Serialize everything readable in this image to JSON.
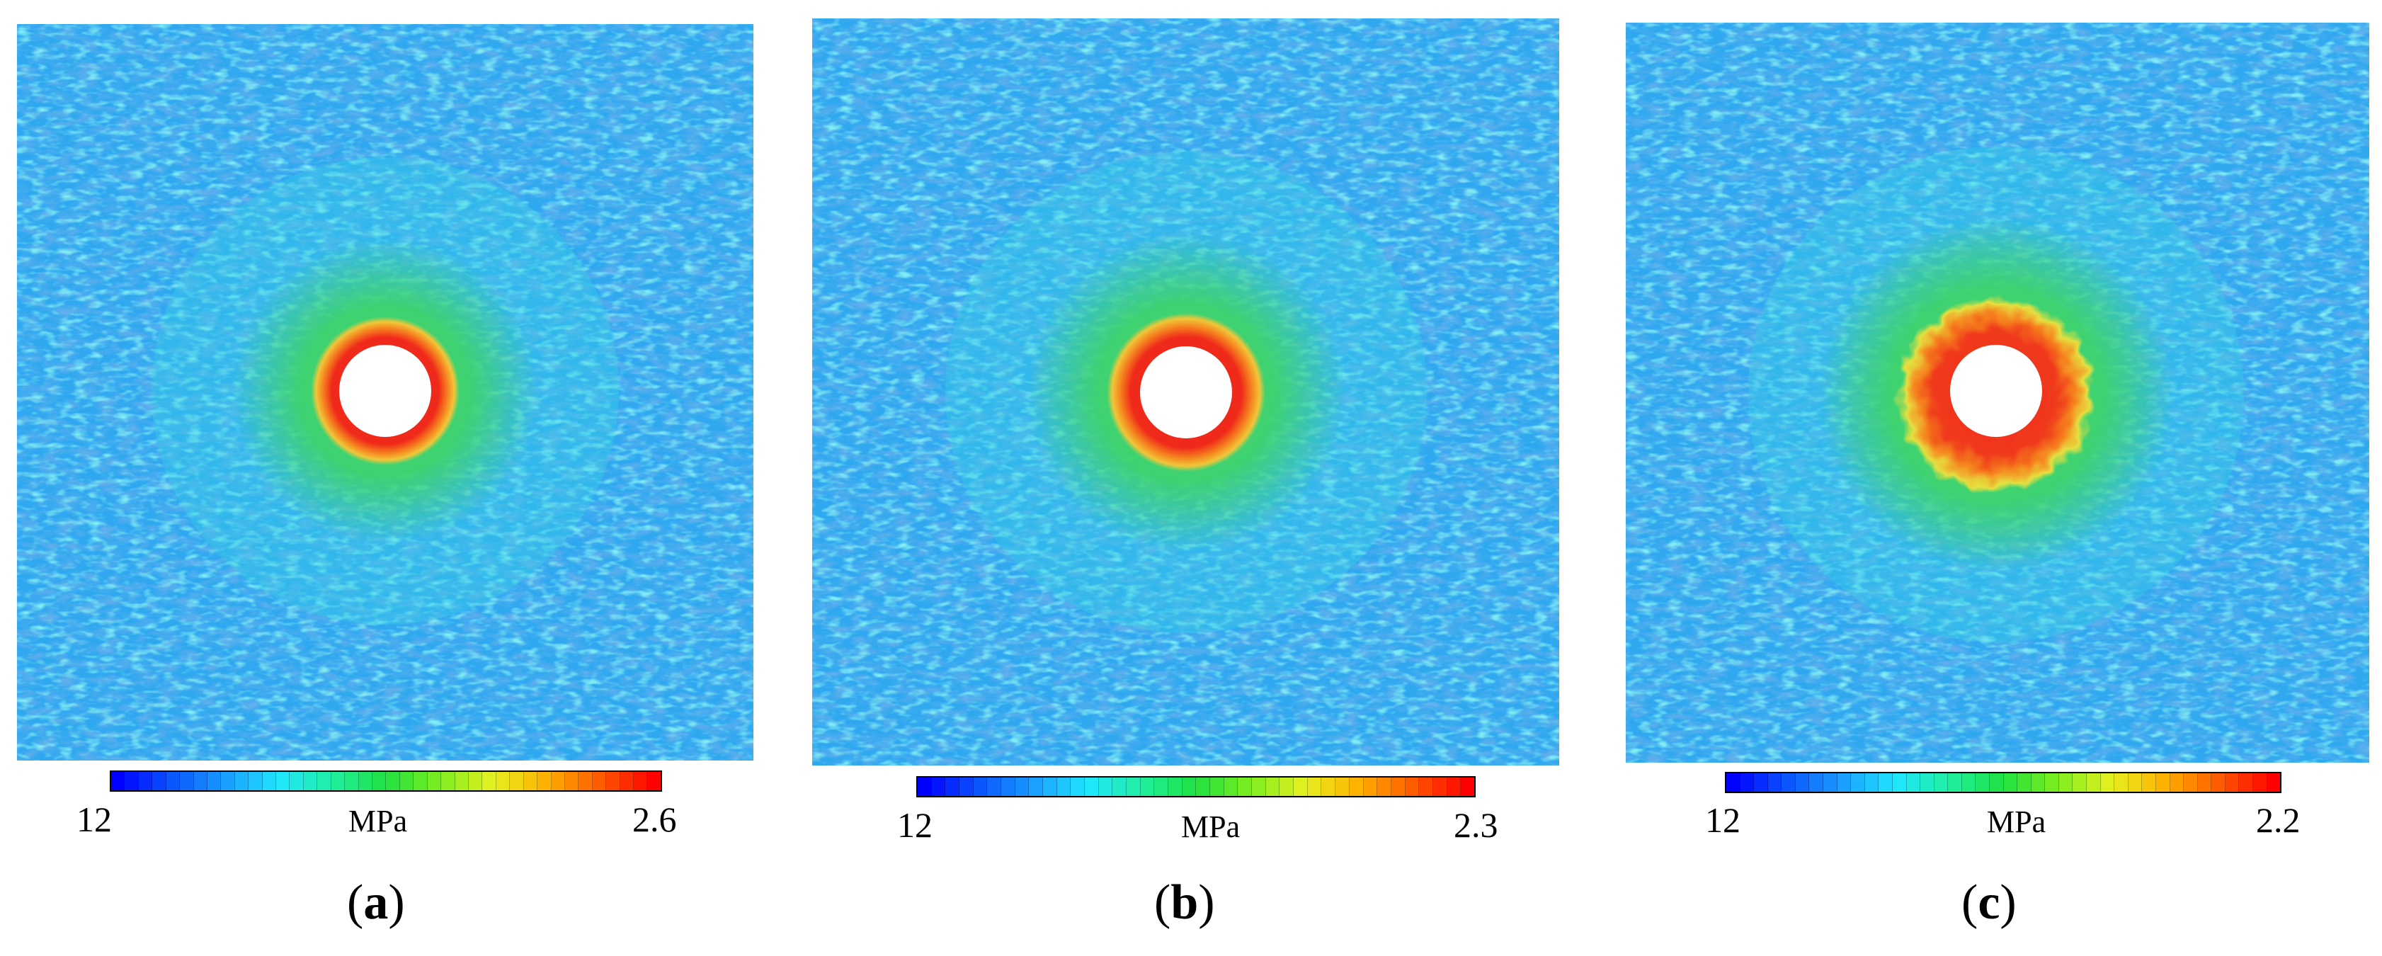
{
  "panels": [
    {
      "id": "a",
      "letter": "a",
      "paren_open": "(",
      "paren_close": ")",
      "colorbar": {
        "min_label": "12",
        "unit_label": "MPa",
        "max_label": "2.6"
      },
      "hole_halo_strength": "thin-ring"
    },
    {
      "id": "b",
      "letter": "b",
      "paren_open": "(",
      "paren_close": ")",
      "colorbar": {
        "min_label": "12",
        "unit_label": "MPa",
        "max_label": "2.3"
      },
      "hole_halo_strength": "thin-ring"
    },
    {
      "id": "c",
      "letter": "c",
      "paren_open": "(",
      "paren_close": ")",
      "colorbar": {
        "min_label": "12",
        "unit_label": "MPa",
        "max_label": "2.2"
      },
      "hole_halo_strength": "wide-irregular"
    }
  ],
  "colors": {
    "field_base": "#2fa8f0",
    "field_dark": "#1f6fd6",
    "field_light": "#39d3e6",
    "near_zone": "#3fd36a",
    "inner_zone": "#f0c63a",
    "ring": "#f02a1a",
    "colorbar_stops": [
      "#0000ff",
      "#0b55ff",
      "#1a9dff",
      "#20e6ff",
      "#1ff0a0",
      "#20e040",
      "#7cee1e",
      "#e6f020",
      "#ffb000",
      "#ff5a00",
      "#ff0000"
    ]
  }
}
